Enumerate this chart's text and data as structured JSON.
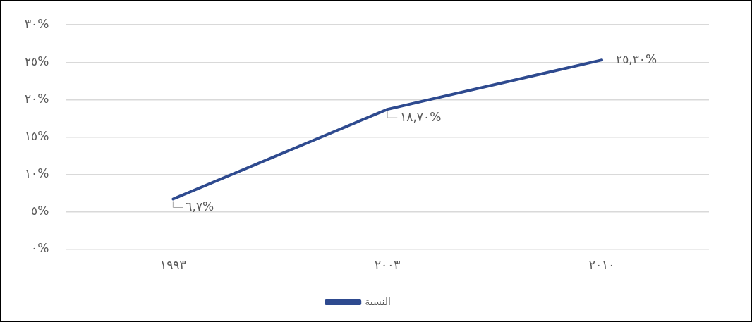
{
  "chart_data": {
    "type": "line",
    "categories": [
      "١٩٩٣",
      "٢٠٠٣",
      "٢٠١٠"
    ],
    "series": [
      {
        "name": "النسبة",
        "color": "#2e4a8f",
        "values": [
          6.7,
          18.7,
          25.3
        ],
        "value_labels": [
          "٦,٧%",
          "١٨,٧٠%",
          "٢٥,٣٠%"
        ]
      }
    ],
    "ylim": [
      0,
      30
    ],
    "yticks": [
      {
        "value": 0,
        "label": "٠%"
      },
      {
        "value": 5,
        "label": "٥%"
      },
      {
        "value": 10,
        "label": "١٠%"
      },
      {
        "value": 15,
        "label": "١٥%"
      },
      {
        "value": 20,
        "label": "٢٠%"
      },
      {
        "value": 25,
        "label": "٢٥%"
      },
      {
        "value": 30,
        "label": "٣٠%"
      }
    ],
    "grid": "y",
    "legend": "bottom",
    "marker": "none",
    "line_style": "solid"
  }
}
